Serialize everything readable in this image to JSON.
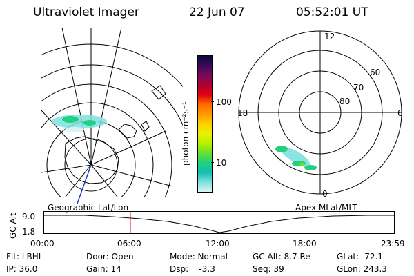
{
  "header": {
    "instrument": "Ultraviolet Imager",
    "date": "22 Jun 07",
    "time": "05:52:01 UT"
  },
  "colorbar": {
    "unit_label": "photon cm⁻²s⁻¹",
    "ticks": [
      "100",
      "10"
    ],
    "colors": [
      "#0a0a3c",
      "#3a0a5a",
      "#7a0a5a",
      "#b00030",
      "#e00010",
      "#ff6a00",
      "#ff9a00",
      "#ffd000",
      "#eaf000",
      "#b8f000",
      "#6ae030",
      "#22d080",
      "#10c0b0",
      "#7fe0e0",
      "#d8f4f4"
    ]
  },
  "left_map": {
    "label": "Geographic Lat/Lon"
  },
  "right_map": {
    "label": "Apex MLat/MLT",
    "mlt_labels": {
      "top": "12",
      "left": "18",
      "right": "6",
      "bottom": "0"
    },
    "lat_labels": [
      "60",
      "70",
      "80"
    ]
  },
  "timeline": {
    "axis_label": "GC Alt",
    "y_ticks": [
      "9.0",
      "1.8"
    ],
    "x_ticks": [
      "00:00",
      "06:00",
      "12:00",
      "18:00",
      "23:59"
    ],
    "current_time_marker_fraction": 0.2465
  },
  "info": {
    "flt": "Flt: LBHL",
    "door": "Door: Open",
    "mode": "Mode: Normal",
    "gc_alt": "GC Alt: 8.7 Re",
    "glat": "GLat: -72.1",
    "ip": "IP: 36.0",
    "gain": "Gain: 14",
    "dsp": "Dsp:    -3.3",
    "seq": "Seq: 39",
    "glon": "GLon: 243.3"
  }
}
